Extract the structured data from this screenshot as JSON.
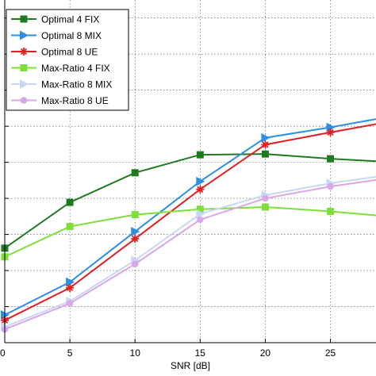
{
  "chart_data": {
    "type": "line",
    "title": "",
    "xlabel": "SNR [dB]",
    "ylabel": "",
    "xlim": [
      0,
      28.5
    ],
    "ylim": [
      0,
      0.95
    ],
    "xticks": [
      0,
      5,
      10,
      15,
      20,
      25
    ],
    "yticks": [
      0.1,
      0.2,
      0.3,
      0.4,
      0.5,
      0.6,
      0.7,
      0.8,
      0.9
    ],
    "grid": true,
    "legend_position": "top-left",
    "series": [
      {
        "name": "Optimal 4 FIX",
        "color": "#1f7a1f",
        "marker": "square",
        "x": [
          0,
          5,
          10,
          15,
          20,
          25,
          28.5
        ],
        "y": [
          0.262,
          0.389,
          0.471,
          0.521,
          0.523,
          0.51,
          0.503
        ]
      },
      {
        "name": "Optimal 8 MIX",
        "color": "#2e8ee6",
        "marker": "triangle-right",
        "x": [
          0,
          5,
          10,
          15,
          20,
          25,
          28.5
        ],
        "y": [
          0.077,
          0.168,
          0.308,
          0.447,
          0.568,
          0.597,
          0.62
        ]
      },
      {
        "name": "Optimal 8 UE",
        "color": "#e02020",
        "marker": "asterisk",
        "x": [
          0,
          5,
          10,
          15,
          20,
          25,
          28.5
        ],
        "y": [
          0.062,
          0.152,
          0.288,
          0.425,
          0.549,
          0.583,
          0.606
        ]
      },
      {
        "name": "Max-Ratio 4 FIX",
        "color": "#7ddf3a",
        "marker": "square",
        "x": [
          0,
          5,
          10,
          15,
          20,
          25,
          28.5
        ],
        "y": [
          0.238,
          0.322,
          0.355,
          0.37,
          0.376,
          0.364,
          0.353
        ]
      },
      {
        "name": "Max-Ratio 8 MIX",
        "color": "#c6d8f5",
        "marker": "triangle-right",
        "x": [
          0,
          5,
          10,
          15,
          20,
          25,
          28.5
        ],
        "y": [
          0.044,
          0.115,
          0.228,
          0.357,
          0.409,
          0.442,
          0.46
        ]
      },
      {
        "name": "Max-Ratio 8 UE",
        "color": "#d9a6ea",
        "marker": "circle",
        "x": [
          0,
          5,
          10,
          15,
          20,
          25,
          28.5
        ],
        "y": [
          0.037,
          0.109,
          0.218,
          0.341,
          0.4,
          0.433,
          0.451
        ]
      }
    ]
  }
}
